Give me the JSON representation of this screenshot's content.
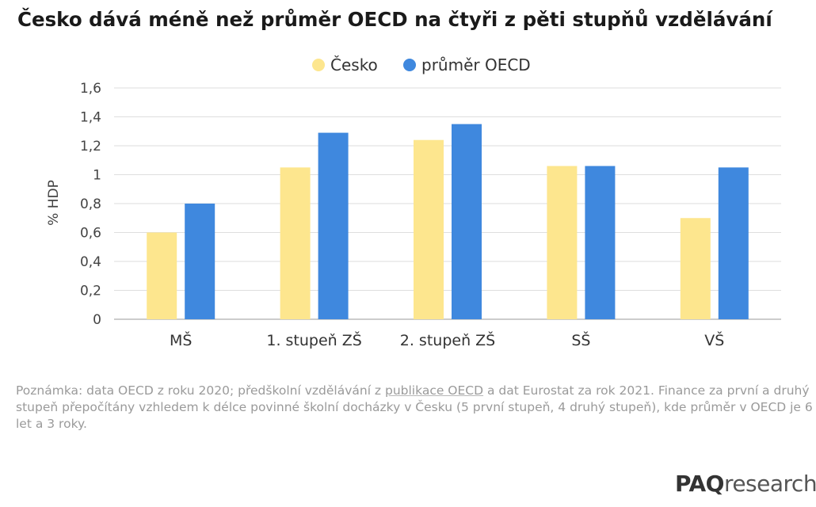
{
  "title": "Česko dává méně než průměr OECD na čtyři z pěti stupňů vzdělávání",
  "chart_data": {
    "type": "bar",
    "categories": [
      "MŠ",
      "1. stupeň ZŠ",
      "2. stupeň ZŠ",
      "SŠ",
      "VŠ"
    ],
    "series": [
      {
        "name": "Česko",
        "color": "#fde68e",
        "values": [
          0.6,
          1.05,
          1.24,
          1.06,
          0.7
        ]
      },
      {
        "name": "průměr OECD",
        "color": "#3f88de",
        "values": [
          0.8,
          1.29,
          1.35,
          1.06,
          1.05
        ]
      }
    ],
    "ylabel": "% HDP",
    "ylim": [
      0,
      1.6
    ],
    "yticks": [
      "0",
      "0,2",
      "0,4",
      "0,6",
      "0,8",
      "1",
      "1,2",
      "1,4",
      "1,6"
    ],
    "legend": "top-center",
    "grid": true
  },
  "note": {
    "before_link": "Poznámka: data OECD z roku 2020; předškolní vzdělávání z ",
    "link": "publikace OECD",
    "after_link": " a dat Eurostat za rok 2021. Finance za první a druhý stupeň přepočítány vzhledem k délce povinné školní docházky v Česku (5 první stupeň, 4 druhý stupeň), kde průměr v OECD je 6 let a 3 roky."
  },
  "logo": {
    "part1": "PAQ",
    "part2": "research"
  }
}
